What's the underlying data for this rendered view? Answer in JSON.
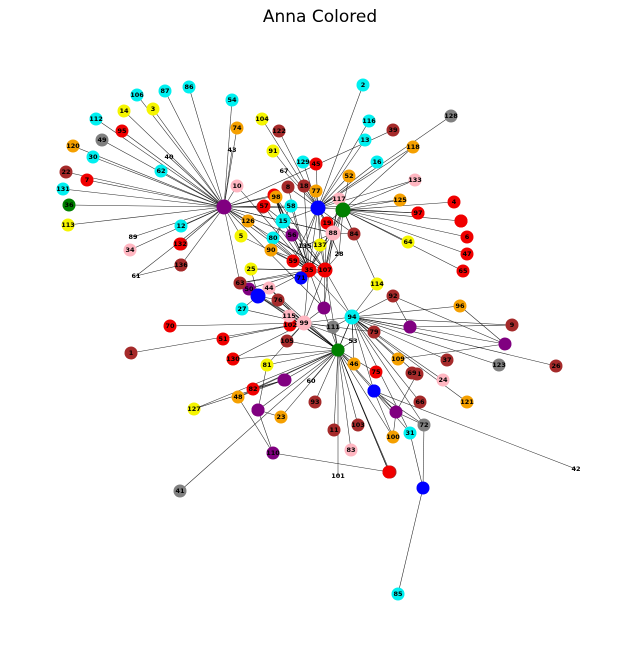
{
  "title": "Anna Colored",
  "colors": {
    "cyan": "#00f0f0",
    "yellow": "#f5f500",
    "orange": "#f5a000",
    "red": "#f00000",
    "brown": "#a52a2a",
    "pink": "#ffb6c1",
    "gray": "#808080",
    "green": "#008000",
    "purple": "#800080",
    "blue": "#0000ff",
    "white": "#ffffff"
  },
  "nodes": [
    {
      "id": "2",
      "c": "cyan"
    },
    {
      "id": "3",
      "c": "yellow"
    },
    {
      "id": "5",
      "c": "yellow"
    },
    {
      "id": "1",
      "c": "brown"
    },
    {
      "id": "4",
      "c": "red"
    },
    {
      "id": "6",
      "c": "red"
    },
    {
      "id": "7",
      "c": "red"
    },
    {
      "id": "8",
      "c": "brown"
    },
    {
      "id": "9",
      "c": "brown"
    },
    {
      "id": "10",
      "c": "pink"
    },
    {
      "id": "11",
      "c": "brown"
    },
    {
      "id": "12",
      "c": "cyan"
    },
    {
      "id": "13",
      "c": "cyan"
    },
    {
      "id": "14",
      "c": "yellow"
    },
    {
      "id": "15",
      "c": "cyan"
    },
    {
      "id": "16",
      "c": "cyan"
    },
    {
      "id": "17",
      "c": "brown"
    },
    {
      "id": "18",
      "c": "brown"
    },
    {
      "id": "19",
      "c": "red"
    },
    {
      "id": "20",
      "c": "brown"
    },
    {
      "id": "21",
      "c": "brown"
    },
    {
      "id": "22",
      "c": "brown"
    },
    {
      "id": "23",
      "c": "orange"
    },
    {
      "id": "24",
      "c": "pink"
    },
    {
      "id": "25",
      "c": "yellow"
    },
    {
      "id": "26",
      "c": "brown"
    },
    {
      "id": "27",
      "c": "cyan"
    },
    {
      "id": "28",
      "c": "white"
    },
    {
      "id": "29",
      "c": "brown"
    },
    {
      "id": "30",
      "c": "cyan"
    },
    {
      "id": "31",
      "c": "cyan"
    },
    {
      "id": "32",
      "c": "red"
    },
    {
      "id": "33",
      "c": "red"
    },
    {
      "id": "34",
      "c": "pink"
    },
    {
      "id": "35",
      "c": "red"
    },
    {
      "id": "36",
      "c": "green"
    },
    {
      "id": "37",
      "c": "brown"
    },
    {
      "id": "38",
      "c": "brown"
    },
    {
      "id": "39",
      "c": "brown"
    },
    {
      "id": "40",
      "c": "white"
    },
    {
      "id": "41",
      "c": "gray"
    },
    {
      "id": "42",
      "c": "white"
    },
    {
      "id": "43",
      "c": "white"
    },
    {
      "id": "44",
      "c": "pink"
    },
    {
      "id": "45",
      "c": "red"
    },
    {
      "id": "46",
      "c": "orange"
    },
    {
      "id": "47",
      "c": "red"
    },
    {
      "id": "48",
      "c": "orange"
    },
    {
      "id": "49",
      "c": "gray"
    },
    {
      "id": "50",
      "c": "purple"
    },
    {
      "id": "51",
      "c": "red"
    },
    {
      "id": "52",
      "c": "orange"
    },
    {
      "id": "53",
      "c": "white"
    },
    {
      "id": "54",
      "c": "cyan"
    },
    {
      "id": "55",
      "c": "brown"
    },
    {
      "id": "56",
      "c": "purple"
    },
    {
      "id": "57",
      "c": "red"
    },
    {
      "id": "58",
      "c": "cyan"
    },
    {
      "id": "59",
      "c": "red"
    },
    {
      "id": "60",
      "c": "white"
    },
    {
      "id": "61",
      "c": "white"
    },
    {
      "id": "62",
      "c": "cyan"
    },
    {
      "id": "63",
      "c": "brown"
    },
    {
      "id": "64",
      "c": "yellow"
    },
    {
      "id": "65",
      "c": "red"
    },
    {
      "id": "66",
      "c": "brown"
    },
    {
      "id": "67",
      "c": "white"
    },
    {
      "id": "68",
      "c": "red"
    },
    {
      "id": "69",
      "c": "brown"
    },
    {
      "id": "70",
      "c": "red"
    },
    {
      "id": "71",
      "c": "blue"
    },
    {
      "id": "72",
      "c": "gray"
    },
    {
      "id": "73",
      "c": "purple"
    },
    {
      "id": "74",
      "c": "orange"
    },
    {
      "id": "75",
      "c": "red"
    },
    {
      "id": "76",
      "c": "brown"
    },
    {
      "id": "77",
      "c": "orange"
    },
    {
      "id": "78",
      "c": "blue"
    },
    {
      "id": "79",
      "c": "brown"
    },
    {
      "id": "80",
      "c": "cyan"
    },
    {
      "id": "81",
      "c": "yellow"
    },
    {
      "id": "82",
      "c": "red"
    },
    {
      "id": "83",
      "c": "pink"
    },
    {
      "id": "84",
      "c": "brown"
    },
    {
      "id": "85",
      "c": "cyan"
    },
    {
      "id": "86",
      "c": "cyan"
    },
    {
      "id": "87",
      "c": "cyan"
    },
    {
      "id": "88",
      "c": "pink"
    },
    {
      "id": "89",
      "c": "white"
    },
    {
      "id": "90",
      "c": "orange"
    },
    {
      "id": "91",
      "c": "yellow"
    },
    {
      "id": "92",
      "c": "brown"
    },
    {
      "id": "93",
      "c": "brown"
    },
    {
      "id": "94",
      "c": "cyan"
    },
    {
      "id": "95",
      "c": "red"
    },
    {
      "id": "96",
      "c": "orange"
    },
    {
      "id": "97",
      "c": "red"
    },
    {
      "id": "98",
      "c": "orange"
    },
    {
      "id": "99",
      "c": "pink"
    },
    {
      "id": "100",
      "c": "orange"
    },
    {
      "id": "101",
      "c": "white"
    },
    {
      "id": "102",
      "c": "red"
    },
    {
      "id": "103",
      "c": "brown"
    },
    {
      "id": "104",
      "c": "yellow"
    },
    {
      "id": "105",
      "c": "brown"
    },
    {
      "id": "106",
      "c": "cyan"
    },
    {
      "id": "107",
      "c": "red"
    },
    {
      "id": "108",
      "c": "orange"
    },
    {
      "id": "109",
      "c": "orange"
    },
    {
      "id": "110",
      "c": "purple"
    },
    {
      "id": "111",
      "c": "gray"
    },
    {
      "id": "112",
      "c": "cyan"
    },
    {
      "id": "113",
      "c": "yellow"
    },
    {
      "id": "114",
      "c": "yellow"
    },
    {
      "id": "115",
      "c": "pink"
    },
    {
      "id": "116",
      "c": "cyan"
    },
    {
      "id": "117",
      "c": "pink"
    },
    {
      "id": "118",
      "c": "orange"
    },
    {
      "id": "119",
      "c": "purple"
    },
    {
      "id": "120",
      "c": "orange"
    },
    {
      "id": "121",
      "c": "orange"
    },
    {
      "id": "122",
      "c": "brown"
    },
    {
      "id": "123",
      "c": "gray"
    },
    {
      "id": "124",
      "c": "red"
    },
    {
      "id": "125",
      "c": "orange"
    },
    {
      "id": "126",
      "c": "orange"
    },
    {
      "id": "127",
      "c": "yellow"
    },
    {
      "id": "128",
      "c": "gray"
    },
    {
      "id": "129",
      "c": "cyan"
    },
    {
      "id": "130",
      "c": "red"
    },
    {
      "id": "131",
      "c": "cyan"
    },
    {
      "id": "132",
      "c": "red"
    },
    {
      "id": "133",
      "c": "pink"
    },
    {
      "id": "134",
      "c": "green"
    },
    {
      "id": "135",
      "c": "white"
    },
    {
      "id": "136",
      "c": "brown"
    },
    {
      "id": "137",
      "c": "yellow"
    },
    {
      "id": "138",
      "c": "green"
    },
    {
      "id": "139",
      "c": "purple"
    },
    {
      "id": "h1",
      "c": "purple"
    },
    {
      "id": "h2",
      "c": "blue"
    },
    {
      "id": "h3",
      "c": "green"
    },
    {
      "id": "h4",
      "c": "blue"
    },
    {
      "id": "h5",
      "c": "purple"
    },
    {
      "id": "h6",
      "c": "purple"
    },
    {
      "id": "h7",
      "c": "purple"
    },
    {
      "id": "h8",
      "c": "blue"
    },
    {
      "id": "h9",
      "c": "green"
    },
    {
      "id": "h10",
      "c": "purple"
    },
    {
      "id": "h11",
      "c": "blue"
    },
    {
      "id": "h12",
      "c": "red"
    },
    {
      "id": "h13",
      "c": "red"
    },
    {
      "id": "h14",
      "c": "purple"
    },
    {
      "id": "h15",
      "c": "purple"
    }
  ],
  "hubs": [
    "h1",
    "h2",
    "h3",
    "h4",
    "94",
    "35",
    "107",
    "99",
    "88",
    "15"
  ],
  "edges": [
    [
      "h1",
      "3"
    ],
    [
      "h1",
      "14"
    ],
    [
      "h1",
      "106"
    ],
    [
      "h1",
      "87"
    ],
    [
      "h1",
      "112"
    ],
    [
      "h1",
      "95"
    ],
    [
      "h1",
      "49"
    ],
    [
      "h1",
      "120"
    ],
    [
      "h1",
      "30"
    ],
    [
      "h1",
      "62"
    ],
    [
      "h1",
      "22"
    ],
    [
      "h1",
      "7"
    ],
    [
      "h1",
      "131"
    ],
    [
      "h1",
      "36"
    ],
    [
      "h1",
      "113"
    ],
    [
      "h1",
      "12"
    ],
    [
      "h1",
      "34"
    ],
    [
      "h1",
      "39"
    ],
    [
      "h1",
      "89"
    ],
    [
      "h1",
      "61"
    ],
    [
      "h1",
      "40"
    ],
    [
      "h1",
      "43"
    ],
    [
      "h1",
      "10"
    ],
    [
      "h1",
      "54"
    ],
    [
      "h1",
      "74"
    ],
    [
      "h1",
      "86"
    ],
    [
      "h1",
      "126"
    ],
    [
      "h1",
      "5"
    ],
    [
      "h1",
      "63"
    ],
    [
      "h1",
      "h6"
    ],
    [
      "h1",
      "15"
    ],
    [
      "h1",
      "h2"
    ],
    [
      "h1",
      "68"
    ],
    [
      "h1",
      "57"
    ],
    [
      "h1",
      "32"
    ],
    [
      "h1",
      "56"
    ],
    [
      "h1",
      "35"
    ],
    [
      "h1",
      "107"
    ],
    [
      "h1",
      "88"
    ],
    [
      "h1",
      "58"
    ],
    [
      "h2",
      "104"
    ],
    [
      "h2",
      "122"
    ],
    [
      "h2",
      "91"
    ],
    [
      "h2",
      "67"
    ],
    [
      "h2",
      "129"
    ],
    [
      "h2",
      "45"
    ],
    [
      "h2",
      "77"
    ],
    [
      "h2",
      "52"
    ],
    [
      "h2",
      "2"
    ],
    [
      "h2",
      "13"
    ],
    [
      "h2",
      "116"
    ],
    [
      "h2",
      "59"
    ],
    [
      "h2",
      "16"
    ],
    [
      "h2",
      "118"
    ],
    [
      "h2",
      "128"
    ],
    [
      "h2",
      "133"
    ],
    [
      "h2",
      "125"
    ],
    [
      "h2",
      "33"
    ],
    [
      "h2",
      "8"
    ],
    [
      "h2",
      "18"
    ],
    [
      "h2",
      "15"
    ],
    [
      "h2",
      "88"
    ],
    [
      "h2",
      "117"
    ],
    [
      "h2",
      "84"
    ],
    [
      "h2",
      "19"
    ],
    [
      "h2",
      "137"
    ],
    [
      "h2",
      "135"
    ],
    [
      "h2",
      "28"
    ],
    [
      "h2",
      "107"
    ],
    [
      "h2",
      "35"
    ],
    [
      "h3",
      "117"
    ],
    [
      "h3",
      "19"
    ],
    [
      "h3",
      "88"
    ],
    [
      "h3",
      "84"
    ],
    [
      "h3",
      "4"
    ],
    [
      "h3",
      "97"
    ],
    [
      "h3",
      "124"
    ],
    [
      "h3",
      "6"
    ],
    [
      "h3",
      "47"
    ],
    [
      "h3",
      "65"
    ],
    [
      "h3",
      "64"
    ],
    [
      "h3",
      "125"
    ],
    [
      "h3",
      "133"
    ],
    [
      "h3",
      "118"
    ],
    [
      "h3",
      "52"
    ],
    [
      "h3",
      "28"
    ],
    [
      "h3",
      "107"
    ],
    [
      "h3",
      "35"
    ],
    [
      "h3",
      "114"
    ],
    [
      "94",
      "114"
    ],
    [
      "94",
      "92"
    ],
    [
      "94",
      "96"
    ],
    [
      "94",
      "h5"
    ],
    [
      "94",
      "9"
    ],
    [
      "94",
      "h7"
    ],
    [
      "94",
      "26"
    ],
    [
      "94",
      "123"
    ],
    [
      "94",
      "37"
    ],
    [
      "94",
      "24"
    ],
    [
      "94",
      "21"
    ],
    [
      "94",
      "121"
    ],
    [
      "94",
      "109"
    ],
    [
      "94",
      "66"
    ],
    [
      "94",
      "72"
    ],
    [
      "94",
      "31"
    ],
    [
      "94",
      "h8"
    ],
    [
      "94",
      "138"
    ],
    [
      "94",
      "79"
    ],
    [
      "94",
      "111"
    ],
    [
      "94",
      "53"
    ],
    [
      "94",
      "99"
    ],
    [
      "94",
      "107"
    ],
    [
      "94",
      "35"
    ],
    [
      "94",
      "46"
    ],
    [
      "94",
      "h9"
    ],
    [
      "h9",
      "46"
    ],
    [
      "h9",
      "75"
    ],
    [
      "h9",
      "h8"
    ],
    [
      "h9",
      "h14"
    ],
    [
      "h9",
      "100"
    ],
    [
      "h9",
      "55"
    ],
    [
      "h9",
      "103"
    ],
    [
      "h9",
      "83"
    ],
    [
      "h9",
      "101"
    ],
    [
      "h9",
      "111"
    ],
    [
      "h9",
      "60"
    ],
    [
      "h9",
      "93"
    ],
    [
      "h9",
      "11"
    ],
    [
      "h9",
      "82"
    ],
    [
      "h9",
      "23"
    ],
    [
      "h9",
      "h10"
    ],
    [
      "h9",
      "81"
    ],
    [
      "h9",
      "48"
    ],
    [
      "h9",
      "127"
    ],
    [
      "h9",
      "130"
    ],
    [
      "h9",
      "h15"
    ],
    [
      "h9",
      "41"
    ],
    [
      "h9",
      "105"
    ],
    [
      "h9",
      "99"
    ],
    [
      "h9",
      "115"
    ],
    [
      "h9",
      "44"
    ],
    [
      "h9",
      "76"
    ],
    [
      "h9",
      "50"
    ],
    [
      "h9",
      "h4"
    ],
    [
      "h9",
      "h13"
    ],
    [
      "h9",
      "29"
    ],
    [
      "h9",
      "107"
    ],
    [
      "h9",
      "35"
    ],
    [
      "h9",
      "53"
    ],
    [
      "99",
      "115"
    ],
    [
      "99",
      "111"
    ],
    [
      "99",
      "53"
    ],
    [
      "99",
      "105"
    ],
    [
      "99",
      "76"
    ],
    [
      "99",
      "44"
    ],
    [
      "99",
      "h4"
    ],
    [
      "99",
      "h6"
    ],
    [
      "99",
      "138"
    ],
    [
      "99",
      "79"
    ],
    [
      "99",
      "1"
    ],
    [
      "99",
      "70"
    ],
    [
      "99",
      "51"
    ],
    [
      "99",
      "130"
    ],
    [
      "99",
      "102"
    ],
    [
      "99",
      "81"
    ],
    [
      "99",
      "50"
    ],
    [
      "99",
      "27"
    ],
    [
      "99",
      "107"
    ],
    [
      "99",
      "35"
    ],
    [
      "107",
      "35"
    ],
    [
      "107",
      "88"
    ],
    [
      "107",
      "19"
    ],
    [
      "107",
      "117"
    ],
    [
      "107",
      "137"
    ],
    [
      "107",
      "135"
    ],
    [
      "107",
      "28"
    ],
    [
      "107",
      "98"
    ],
    [
      "107",
      "90"
    ],
    [
      "107",
      "80"
    ],
    [
      "107",
      "15"
    ],
    [
      "107",
      "h6"
    ],
    [
      "107",
      "25"
    ],
    [
      "107",
      "63"
    ],
    [
      "107",
      "71"
    ],
    [
      "35",
      "88"
    ],
    [
      "35",
      "135"
    ],
    [
      "35",
      "137"
    ],
    [
      "35",
      "98"
    ],
    [
      "35",
      "90"
    ],
    [
      "35",
      "80"
    ],
    [
      "35",
      "15"
    ],
    [
      "35",
      "58"
    ],
    [
      "35",
      "68"
    ],
    [
      "35",
      "8"
    ],
    [
      "35",
      "18"
    ],
    [
      "35",
      "32"
    ],
    [
      "35",
      "57"
    ],
    [
      "35",
      "126"
    ],
    [
      "35",
      "5"
    ],
    [
      "35",
      "10"
    ],
    [
      "35",
      "25"
    ],
    [
      "35",
      "63"
    ],
    [
      "35",
      "50"
    ],
    [
      "35",
      "h4"
    ],
    [
      "88",
      "19"
    ],
    [
      "88",
      "84"
    ],
    [
      "88",
      "117"
    ],
    [
      "88",
      "137"
    ],
    [
      "88",
      "135"
    ],
    [
      "88",
      "15"
    ],
    [
      "88",
      "h6"
    ],
    [
      "15",
      "58"
    ],
    [
      "15",
      "80"
    ],
    [
      "15",
      "90"
    ],
    [
      "15",
      "98"
    ],
    [
      "15",
      "32"
    ],
    [
      "15",
      "57"
    ],
    [
      "15",
      "68"
    ],
    [
      "h4",
      "44"
    ],
    [
      "h4",
      "76"
    ],
    [
      "h4",
      "25"
    ],
    [
      "h4",
      "63"
    ],
    [
      "h4",
      "27"
    ],
    [
      "h4",
      "50"
    ],
    [
      "h7",
      "109"
    ],
    [
      "h7",
      "96"
    ],
    [
      "h7",
      "92"
    ],
    [
      "h11",
      "72"
    ],
    [
      "h11",
      "85"
    ],
    [
      "h11",
      "31"
    ],
    [
      "h8",
      "42"
    ],
    [
      "h8",
      "h14"
    ],
    [
      "h8",
      "100"
    ],
    [
      "h8",
      "31"
    ],
    [
      "h8",
      "72"
    ],
    [
      "h12",
      "124"
    ],
    [
      "h13",
      "29"
    ],
    [
      "h13",
      "110"
    ],
    [
      "38",
      "h1"
    ],
    [
      "38",
      "61"
    ],
    [
      "20",
      "h1"
    ],
    [
      "110",
      "48"
    ],
    [
      "110",
      "h10"
    ],
    [
      "h10",
      "23"
    ],
    [
      "h10",
      "81"
    ],
    [
      "h15",
      "48"
    ],
    [
      "h15",
      "82"
    ],
    [
      "h15",
      "127"
    ],
    [
      "h14",
      "100"
    ],
    [
      "h14",
      "21"
    ],
    [
      "h14",
      "72"
    ],
    [
      "h5",
      "9"
    ],
    [
      "h5",
      "92"
    ]
  ]
}
